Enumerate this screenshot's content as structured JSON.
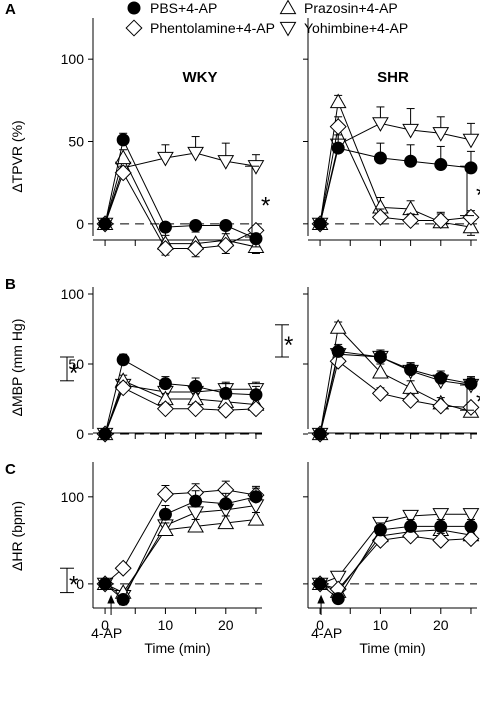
{
  "figure": {
    "legend": [
      {
        "name": "PBS+4-AP",
        "marker": "circle-filled"
      },
      {
        "name": "Phentolamine+4-AP",
        "marker": "diamond-open"
      },
      {
        "name": "Prazosin+4-AP",
        "marker": "triangle-up-open"
      },
      {
        "name": "Yohimbine+4-AP",
        "marker": "triangle-down-open"
      }
    ],
    "panel_letters": [
      "A",
      "B",
      "C"
    ],
    "strain_labels": [
      "WKY",
      "SHR"
    ],
    "arrow_label": "4-AP",
    "asterisk": "*"
  },
  "chart_data": [
    {
      "type": "line",
      "panel": "A",
      "strain": "WKY",
      "ylabel": "ΔTPVR (%)",
      "ylim": [
        -25,
        125
      ],
      "yticks": [
        0,
        50,
        100
      ],
      "xlim": [
        -2,
        26
      ],
      "xticks": [
        0,
        10,
        20
      ],
      "xticklabels": [
        "",
        "",
        ""
      ],
      "xlabel": "",
      "x": [
        0,
        3,
        10,
        15,
        20,
        25
      ],
      "series": [
        {
          "name": "PBS+4-AP",
          "values": [
            0,
            51,
            -2,
            -1,
            -1,
            -9
          ],
          "err": [
            0,
            4,
            5,
            4,
            5,
            5
          ]
        },
        {
          "name": "Phentolamine+4-AP",
          "values": [
            0,
            31,
            -15,
            -15,
            -13,
            -4
          ],
          "err": [
            0,
            4,
            4,
            5,
            5,
            4
          ]
        },
        {
          "name": "Prazosin+4-AP",
          "values": [
            0,
            40,
            -12,
            -12,
            -10,
            -14
          ],
          "err": [
            0,
            5,
            4,
            5,
            4,
            4
          ]
        },
        {
          "name": "Yohimbine+4-AP",
          "values": [
            0,
            34,
            40,
            43,
            38,
            35
          ],
          "err": [
            0,
            6,
            8,
            10,
            11,
            7
          ]
        }
      ],
      "significance": {
        "range": [
          -8,
          35
        ],
        "side": "right"
      }
    },
    {
      "type": "line",
      "panel": "A",
      "strain": "SHR",
      "ylabel": "",
      "ylim": [
        -25,
        125
      ],
      "yticks": [
        0,
        50,
        100
      ],
      "xlim": [
        -2,
        26
      ],
      "xticks": [
        0,
        10,
        20
      ],
      "xticklabels": [
        "",
        "",
        ""
      ],
      "xlabel": "",
      "x": [
        0,
        3,
        10,
        15,
        20,
        25
      ],
      "series": [
        {
          "name": "PBS+4-AP",
          "values": [
            0,
            46,
            40,
            38,
            36,
            34
          ],
          "err": [
            0,
            8,
            9,
            10,
            11,
            10
          ]
        },
        {
          "name": "Phentolamine+4-AP",
          "values": [
            0,
            59,
            4,
            2,
            2,
            4
          ],
          "err": [
            0,
            6,
            5,
            4,
            5,
            4
          ]
        },
        {
          "name": "Prazosin+4-AP",
          "values": [
            0,
            74,
            10,
            9,
            1,
            -2
          ],
          "err": [
            0,
            4,
            6,
            5,
            5,
            5
          ]
        },
        {
          "name": "Yohimbine+4-AP",
          "values": [
            0,
            48,
            61,
            57,
            55,
            51
          ],
          "err": [
            0,
            10,
            10,
            13,
            10,
            10
          ]
        }
      ],
      "significance": {
        "range": [
          5,
          35
        ],
        "side": "right"
      }
    },
    {
      "type": "line",
      "panel": "B",
      "strain": "WKY",
      "ylabel": "ΔMBP (mm Hg)",
      "ylim": [
        -10,
        105
      ],
      "yticks": [
        0,
        50,
        100
      ],
      "xlim": [
        -2,
        26
      ],
      "xticks": [
        0,
        10,
        20
      ],
      "xticklabels": [
        "",
        "",
        ""
      ],
      "xlabel": "",
      "x": [
        0,
        3,
        10,
        15,
        20,
        25
      ],
      "series": [
        {
          "name": "PBS+4-AP",
          "values": [
            0,
            53,
            36,
            34,
            29,
            28
          ],
          "err": [
            0,
            4,
            5,
            6,
            7,
            6
          ]
        },
        {
          "name": "Phentolamine+4-AP",
          "values": [
            0,
            33,
            18,
            18,
            17,
            18
          ],
          "err": [
            0,
            4,
            4,
            4,
            3,
            3
          ]
        },
        {
          "name": "Prazosin+4-AP",
          "values": [
            0,
            38,
            25,
            25,
            23,
            21
          ],
          "err": [
            0,
            4,
            4,
            4,
            4,
            4
          ]
        },
        {
          "name": "Yohimbine+4-AP",
          "values": [
            0,
            35,
            30,
            30,
            32,
            32
          ],
          "err": [
            0,
            4,
            4,
            4,
            5,
            5
          ]
        }
      ],
      "significance": {
        "range": [
          38,
          55
        ],
        "side": "left"
      }
    },
    {
      "type": "line",
      "panel": "B",
      "strain": "SHR",
      "ylabel": "",
      "ylim": [
        -10,
        105
      ],
      "yticks": [
        0,
        50,
        100
      ],
      "xlim": [
        -2,
        26
      ],
      "xticks": [
        0,
        10,
        20
      ],
      "xticklabels": [
        "",
        "",
        ""
      ],
      "xlabel": "",
      "x": [
        0,
        3,
        10,
        15,
        20,
        25
      ],
      "series": [
        {
          "name": "PBS+4-AP",
          "values": [
            0,
            59,
            55,
            46,
            40,
            36
          ],
          "err": [
            0,
            5,
            5,
            5,
            5,
            5
          ]
        },
        {
          "name": "Phentolamine+4-AP",
          "values": [
            0,
            52,
            29,
            24,
            20,
            19
          ],
          "err": [
            0,
            4,
            4,
            4,
            3,
            3
          ]
        },
        {
          "name": "Prazosin+4-AP",
          "values": [
            0,
            76,
            44,
            33,
            22,
            16
          ],
          "err": [
            0,
            4,
            6,
            5,
            4,
            4
          ]
        },
        {
          "name": "Yohimbine+4-AP",
          "values": [
            0,
            57,
            55,
            45,
            38,
            35
          ],
          "err": [
            0,
            5,
            5,
            5,
            5,
            5
          ]
        }
      ],
      "significance_left": {
        "range": [
          55,
          78
        ],
        "side": "left"
      },
      "significance": {
        "range": [
          17,
          35
        ],
        "side": "right"
      }
    },
    {
      "type": "line",
      "panel": "C",
      "strain": "WKY",
      "ylabel": "ΔHR (bpm)",
      "ylim": [
        -30,
        140
      ],
      "yticks": [
        0,
        100
      ],
      "xlim": [
        -2,
        26
      ],
      "xticks": [
        0,
        10,
        20
      ],
      "xticklabels": [
        "0",
        "10",
        "20"
      ],
      "xlabel": "Time (min)",
      "x": [
        0,
        3,
        10,
        15,
        20,
        25
      ],
      "series": [
        {
          "name": "PBS+4-AP",
          "values": [
            0,
            -18,
            80,
            95,
            92,
            100
          ],
          "err": [
            0,
            6,
            10,
            12,
            12,
            10
          ]
        },
        {
          "name": "Phentolamine+4-AP",
          "values": [
            0,
            18,
            103,
            105,
            108,
            102
          ],
          "err": [
            0,
            5,
            10,
            10,
            10,
            10
          ]
        },
        {
          "name": "Prazosin+4-AP",
          "values": [
            0,
            -10,
            62,
            66,
            70,
            74
          ],
          "err": [
            0,
            5,
            8,
            8,
            8,
            8
          ]
        },
        {
          "name": "Yohimbine+4-AP",
          "values": [
            0,
            -14,
            67,
            82,
            85,
            90
          ],
          "err": [
            0,
            5,
            8,
            8,
            8,
            8
          ]
        }
      ],
      "significance": {
        "range": [
          -10,
          18
        ],
        "side": "left"
      }
    },
    {
      "type": "line",
      "panel": "C",
      "strain": "SHR",
      "ylabel": "",
      "ylim": [
        -30,
        140
      ],
      "yticks": [
        0,
        100
      ],
      "xlim": [
        -2,
        26
      ],
      "xticks": [
        0,
        10,
        20
      ],
      "xticklabels": [
        "0",
        "10",
        "20"
      ],
      "xlabel": "Time (min)",
      "x": [
        0,
        3,
        10,
        15,
        20,
        25
      ],
      "series": [
        {
          "name": "PBS+4-AP",
          "values": [
            0,
            -17,
            62,
            66,
            66,
            66
          ],
          "err": [
            0,
            5,
            8,
            8,
            8,
            8
          ]
        },
        {
          "name": "Phentolamine+4-AP",
          "values": [
            0,
            -6,
            50,
            55,
            50,
            52
          ],
          "err": [
            0,
            5,
            8,
            8,
            8,
            8
          ]
        },
        {
          "name": "Prazosin+4-AP",
          "values": [
            0,
            -9,
            55,
            60,
            62,
            56
          ],
          "err": [
            0,
            5,
            8,
            8,
            8,
            8
          ]
        },
        {
          "name": "Yohimbine+4-AP",
          "values": [
            0,
            8,
            70,
            78,
            80,
            80
          ],
          "err": [
            0,
            5,
            6,
            6,
            6,
            6
          ]
        }
      ]
    }
  ]
}
